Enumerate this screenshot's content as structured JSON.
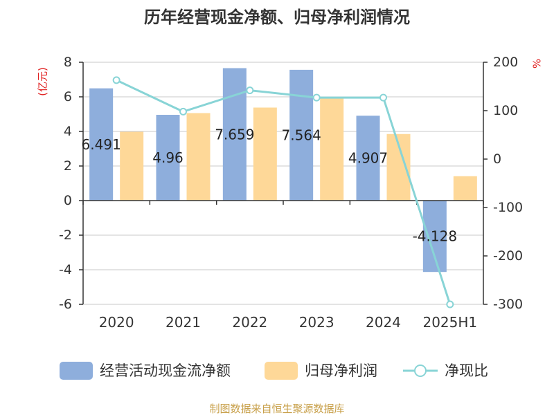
{
  "chart_data": {
    "type": "bar",
    "title": "历年经营现金净额、归母净利润情况",
    "left_unit": "(亿元)",
    "right_unit": "%",
    "categories": [
      "2020",
      "2021",
      "2022",
      "2023",
      "2024",
      "2025H1"
    ],
    "series": [
      {
        "name": "经营活动现金流净额",
        "kind": "bar",
        "axis": "left",
        "color": "#8eaedc",
        "values": [
          6.491,
          4.96,
          7.659,
          7.564,
          4.907,
          -4.128
        ],
        "labels": [
          "6.491",
          "4.96",
          "7.659",
          "7.564",
          "4.907",
          "-4.128"
        ]
      },
      {
        "name": "归母净利润",
        "kind": "bar",
        "axis": "left",
        "color": "#fed898",
        "values": [
          3.98,
          5.06,
          5.38,
          5.95,
          3.85,
          1.41
        ]
      },
      {
        "name": "净现比",
        "kind": "line",
        "axis": "right",
        "color": "#88d4d6",
        "values": [
          163,
          98,
          142,
          127,
          127,
          -300
        ]
      }
    ],
    "left_axis": {
      "min": -6,
      "max": 8,
      "step": 2,
      "ticks": [
        "-6",
        "-4",
        "-2",
        "0",
        "2",
        "4",
        "6",
        "8"
      ]
    },
    "right_axis": {
      "min": -300,
      "max": 200,
      "step": 100,
      "ticks": [
        "-300",
        "-200",
        "-100",
        "0",
        "100",
        "200"
      ]
    },
    "grid": true,
    "legend_position": "bottom"
  },
  "source": "制图数据来自恒生聚源数据库"
}
